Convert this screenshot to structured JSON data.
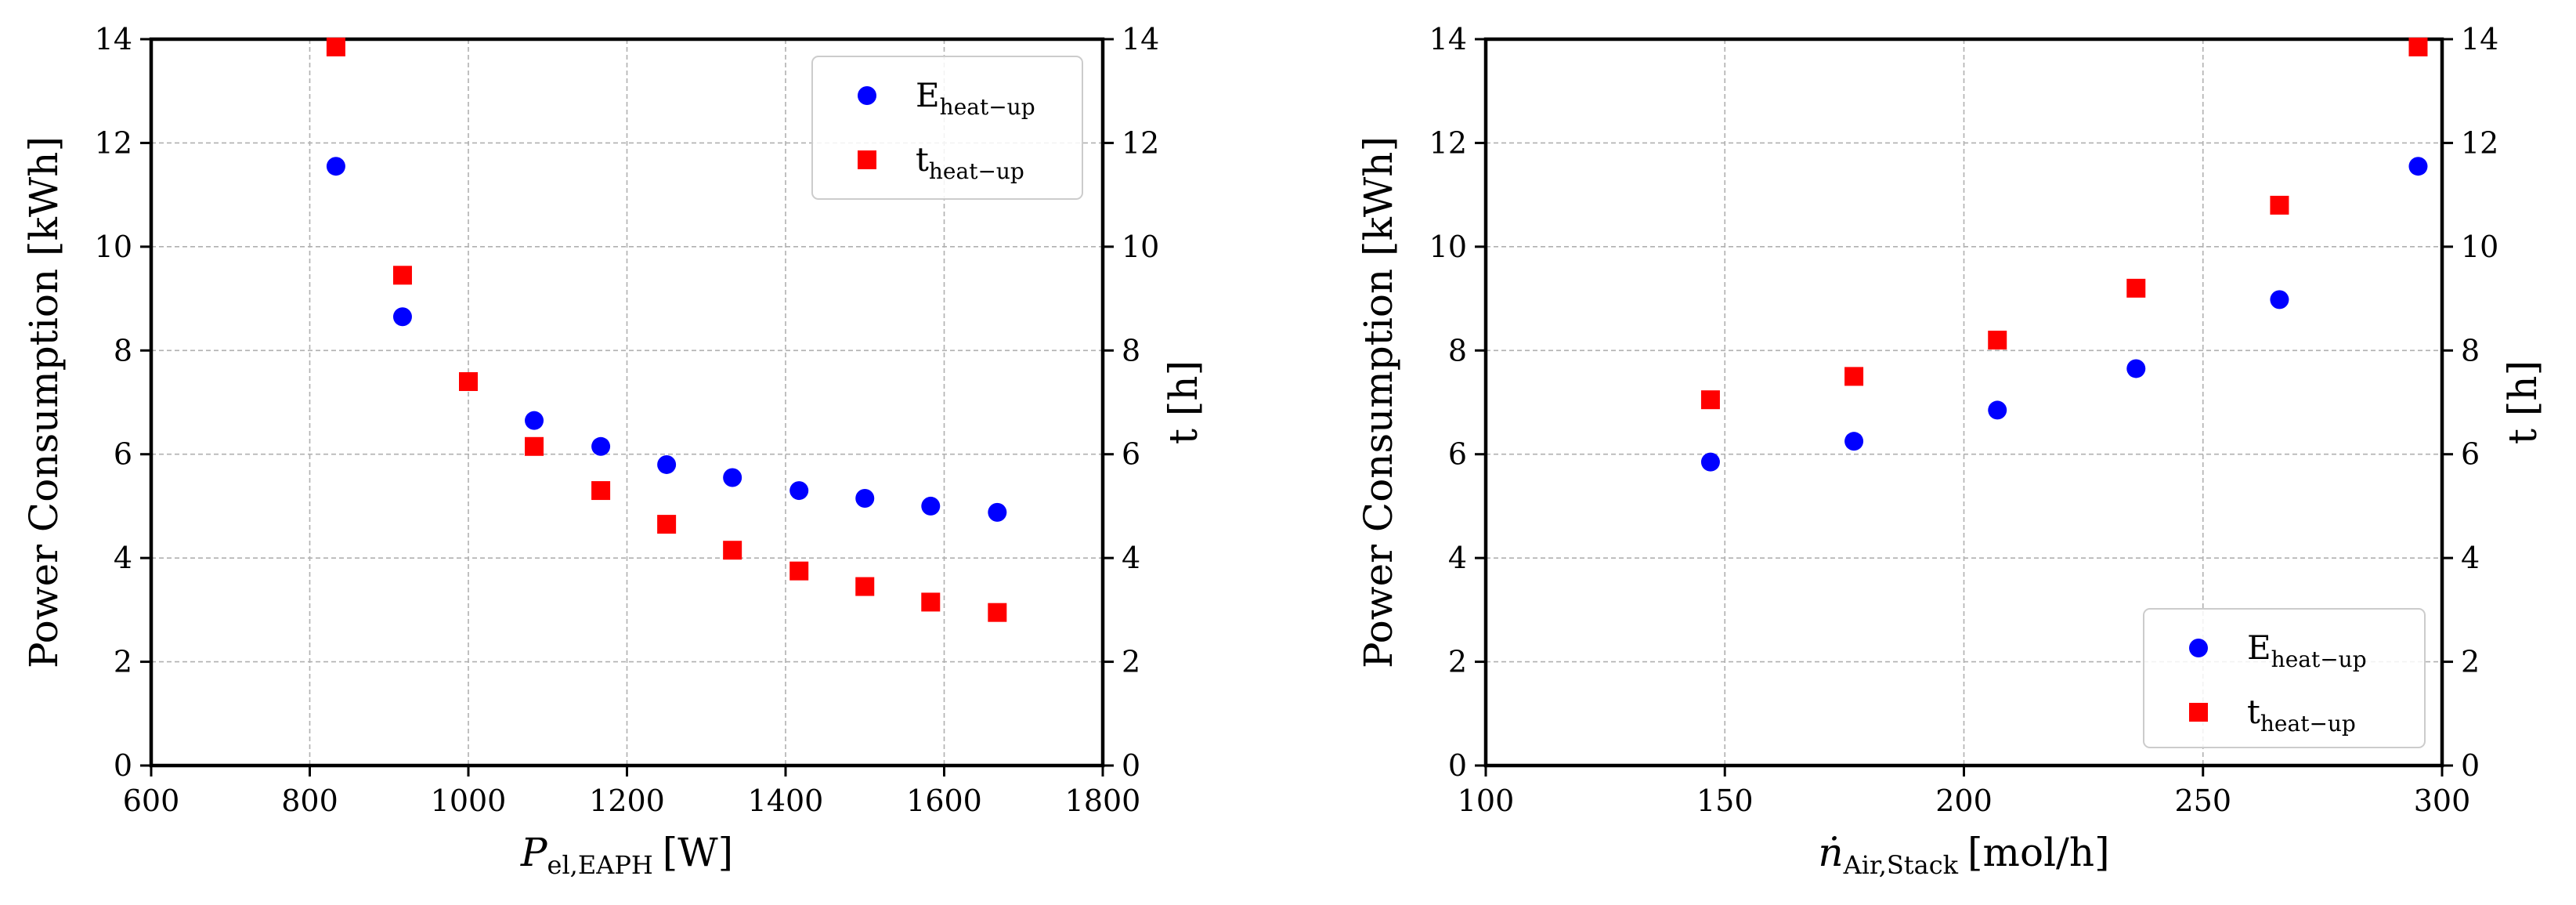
{
  "chart_data": [
    {
      "type": "scatter",
      "xlabel": {
        "main": "P",
        "sub": "el,EAPH",
        "unit": "[W]"
      },
      "ylabel": "Power Consumption [kWh]",
      "y2label": "t [h]",
      "xlim": [
        600,
        1800
      ],
      "ylim": [
        0,
        14
      ],
      "y2lim": [
        0,
        14
      ],
      "xticks": [
        "600",
        "800",
        "1000",
        "1200",
        "1400",
        "1600",
        "1800"
      ],
      "yticks": [
        "0",
        "2",
        "4",
        "6",
        "8",
        "10",
        "12",
        "14"
      ],
      "y2ticks": [
        "0",
        "2",
        "4",
        "6",
        "8",
        "10",
        "12",
        "14"
      ],
      "grid": true,
      "legend_loc": "upper right",
      "series": [
        {
          "name": "E",
          "name_sub": "heat−up",
          "marker": "circle",
          "color": "#0000ff",
          "axis": "left",
          "x": [
            833,
            917,
            1083,
            1167,
            1250,
            1333,
            1417,
            1500,
            1583,
            1667
          ],
          "y": [
            11.55,
            8.65,
            6.65,
            6.15,
            5.8,
            5.55,
            5.3,
            5.15,
            5.0,
            4.88
          ]
        },
        {
          "name": "t",
          "name_sub": "heat−up",
          "marker": "square",
          "color": "#ff0000",
          "axis": "right",
          "x": [
            833,
            917,
            1000,
            1083,
            1167,
            1250,
            1333,
            1417,
            1500,
            1583,
            1667
          ],
          "y": [
            13.85,
            9.45,
            7.4,
            6.15,
            5.3,
            4.65,
            4.15,
            3.75,
            3.45,
            3.15,
            2.95
          ]
        }
      ]
    },
    {
      "type": "scatter",
      "xlabel": {
        "main": "ṅ",
        "sub": "Air,Stack",
        "unit": "[mol/h]"
      },
      "ylabel": "Power Consumption [kWh]",
      "y2label": "t [h]",
      "xlim": [
        100,
        300
      ],
      "ylim": [
        0,
        14
      ],
      "y2lim": [
        0,
        14
      ],
      "xticks": [
        "100",
        "150",
        "200",
        "250",
        "300"
      ],
      "yticks": [
        "0",
        "2",
        "4",
        "6",
        "8",
        "10",
        "12",
        "14"
      ],
      "y2ticks": [
        "0",
        "2",
        "4",
        "6",
        "8",
        "10",
        "12",
        "14"
      ],
      "grid": true,
      "legend_loc": "lower right",
      "series": [
        {
          "name": "E",
          "name_sub": "heat−up",
          "marker": "circle",
          "color": "#0000ff",
          "axis": "left",
          "x": [
            147,
            177,
            207,
            236,
            266,
            295
          ],
          "y": [
            5.85,
            6.25,
            6.85,
            7.65,
            8.98,
            11.55
          ]
        },
        {
          "name": "t",
          "name_sub": "heat−up",
          "marker": "square",
          "color": "#ff0000",
          "axis": "right",
          "x": [
            147,
            177,
            207,
            236,
            266,
            295
          ],
          "y": [
            7.05,
            7.5,
            8.2,
            9.2,
            10.8,
            13.85
          ]
        }
      ]
    }
  ]
}
